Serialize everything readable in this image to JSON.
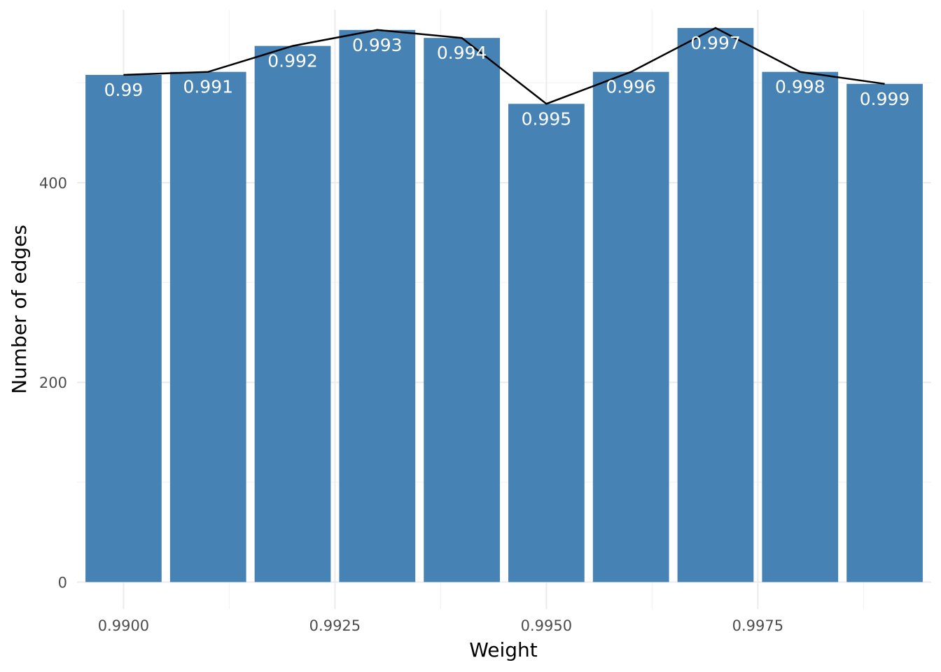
{
  "chart_data": {
    "type": "bar",
    "xlabel": "Weight",
    "ylabel": "Number of edges",
    "x": [
      0.99,
      0.991,
      0.992,
      0.993,
      0.994,
      0.995,
      0.996,
      0.997,
      0.998,
      0.999
    ],
    "bar_labels": [
      "0.99",
      "0.991",
      "0.992",
      "0.993",
      "0.994",
      "0.995",
      "0.996",
      "0.997",
      "0.998",
      "0.999"
    ],
    "values": [
      508,
      511,
      537,
      553,
      545,
      479,
      511,
      555,
      511,
      499
    ],
    "line_values": [
      508,
      511,
      537,
      553,
      545,
      479,
      511,
      555,
      511,
      499
    ],
    "bar_color": "#4682b4",
    "line_color": "#000000",
    "x_ticks": [
      {
        "value": 0.99,
        "label": "0.9900"
      },
      {
        "value": 0.9925,
        "label": "0.9925"
      },
      {
        "value": 0.995,
        "label": "0.9950"
      },
      {
        "value": 0.9975,
        "label": "0.9975"
      }
    ],
    "y_ticks": [
      {
        "value": 0,
        "label": "0"
      },
      {
        "value": 200,
        "label": "200"
      },
      {
        "value": 400,
        "label": "400"
      }
    ],
    "xlim": [
      0.98945,
      0.99955
    ],
    "ylim": [
      -27,
      583
    ],
    "grid": true,
    "legend": "none"
  }
}
